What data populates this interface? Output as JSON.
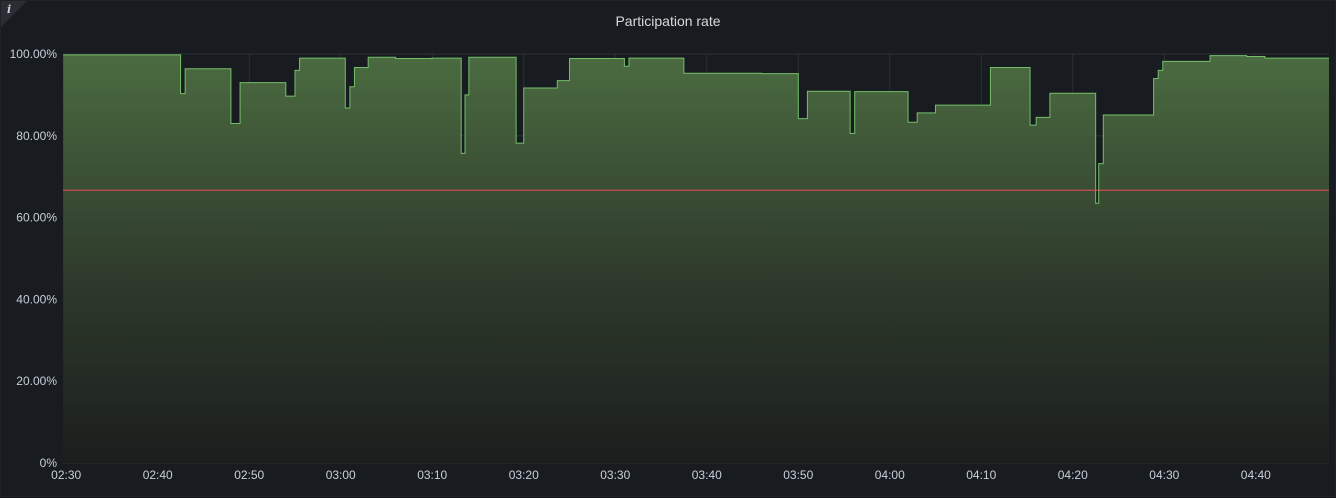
{
  "panel": {
    "title": "Participation rate",
    "info_icon": "info-icon"
  },
  "chart_data": {
    "type": "area",
    "title": "Participation rate",
    "xlabel": "",
    "ylabel": "",
    "x_unit": "minutes since 02:30 on displayed time axis",
    "xlim": [
      "02:30",
      "04:48"
    ],
    "ylim": [
      0,
      100
    ],
    "y_ticks": [
      "0%",
      "20.00%",
      "40.00%",
      "60.00%",
      "80.00%",
      "100.00%"
    ],
    "y_tick_values": [
      0,
      20,
      40,
      60,
      80,
      100
    ],
    "x_ticks": [
      "02:30",
      "02:40",
      "02:50",
      "03:00",
      "03:10",
      "03:20",
      "03:30",
      "03:40",
      "03:50",
      "04:00",
      "04:10",
      "04:20",
      "04:30",
      "04:40"
    ],
    "grid": true,
    "legend": "none",
    "series": [
      {
        "step": true,
        "color": "#73bf69",
        "points": [
          [
            "02:29:40",
            99.8
          ],
          [
            "02:42:30",
            90.3
          ],
          [
            "02:43",
            96.4
          ],
          [
            "02:48",
            83.0
          ],
          [
            "02:49",
            93.0
          ],
          [
            "02:54",
            89.7
          ],
          [
            "02:55",
            96.0
          ],
          [
            "02:55:30",
            99.0
          ],
          [
            "03:00:30",
            86.8
          ],
          [
            "03:01",
            92.0
          ],
          [
            "03:01:30",
            96.7
          ],
          [
            "03:03",
            99.2
          ],
          [
            "03:06",
            98.9
          ],
          [
            "03:10",
            99.0
          ],
          [
            "03:13:10",
            75.7
          ],
          [
            "03:13:35",
            90.0
          ],
          [
            "03:14",
            99.2
          ],
          [
            "03:19:10",
            78.2
          ],
          [
            "03:20",
            91.7
          ],
          [
            "03:23:40",
            93.5
          ],
          [
            "03:25",
            98.9
          ],
          [
            "03:31",
            97.0
          ],
          [
            "03:31:30",
            99.0
          ],
          [
            "03:37:30",
            95.3
          ],
          [
            "03:46",
            95.2
          ],
          [
            "03:50",
            84.2
          ],
          [
            "03:51",
            90.9
          ],
          [
            "03:55:40",
            80.6
          ],
          [
            "03:56:10",
            90.8
          ],
          [
            "04:02",
            83.3
          ],
          [
            "04:03",
            85.6
          ],
          [
            "04:05",
            87.5
          ],
          [
            "04:11",
            96.7
          ],
          [
            "04:15:20",
            82.6
          ],
          [
            "04:16",
            84.5
          ],
          [
            "04:17:30",
            90.4
          ],
          [
            "04:22:30",
            63.5
          ],
          [
            "04:22:50",
            73.2
          ],
          [
            "04:23:20",
            85.1
          ],
          [
            "04:28:50",
            94.0
          ],
          [
            "04:29:20",
            96.0
          ],
          [
            "04:29:50",
            98.2
          ],
          [
            "04:35",
            99.6
          ],
          [
            "04:39",
            99.4
          ],
          [
            "04:41",
            99.0
          ],
          [
            "04:48",
            99.0
          ]
        ]
      }
    ],
    "threshold": {
      "value": 66.7,
      "color": "#f2495c"
    }
  }
}
